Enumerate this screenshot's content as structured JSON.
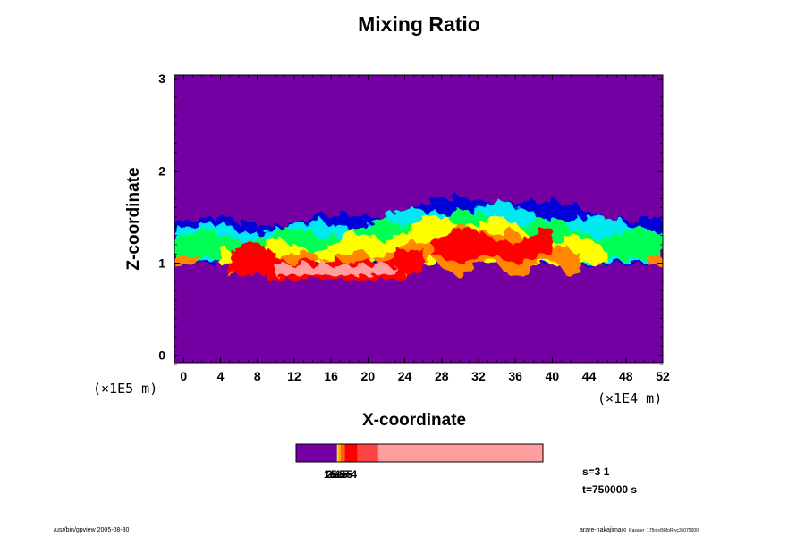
{
  "chart_data": {
    "type": "heatmap",
    "title": "Mixing Ratio",
    "xlabel": "X-coordinate",
    "ylabel": "Z-coordinate",
    "x_scale_label": "(×1E4 m)",
    "y_scale_label": "(×1E5 m)",
    "xlim": [
      -1,
      52
    ],
    "ylim": [
      -0.08,
      3.04
    ],
    "x_ticks": [
      0,
      4,
      8,
      12,
      16,
      20,
      24,
      28,
      32,
      36,
      40,
      44,
      48,
      52
    ],
    "y_ticks": [
      0,
      1,
      2,
      3
    ],
    "colorbar": {
      "colors": [
        "#7400a4",
        "#ffe400",
        "#ffa600",
        "#ff6600",
        "#ff0000",
        "#ff4444",
        "#ff9e9e"
      ],
      "labels_overlapped": [
        "1e-5",
        "2e-5",
        "5e-5",
        "1e-4"
      ]
    },
    "field_description_values": {
      "background_value": "minimum (purple)",
      "active_layer_z_range": [
        0.8,
        1.8
      ]
    }
  },
  "annotations": {
    "s_value": "s=3 1",
    "t_value": "t=750000 s",
    "footer_left": "/usr/bin/gpview 2005-08-30",
    "footer_right": "arare-nakajima",
    "footer_right_small": "00_Rasaler_175no@MoRtyc3,i075000"
  },
  "colors": {
    "background": "#7400a4",
    "blue": "#0000d8",
    "cyan": "#00e8f0",
    "green": "#00ff55",
    "yellow": "#ffff00",
    "orange": "#ff8800",
    "red": "#ff0000",
    "pink": "#ff9e9e"
  }
}
